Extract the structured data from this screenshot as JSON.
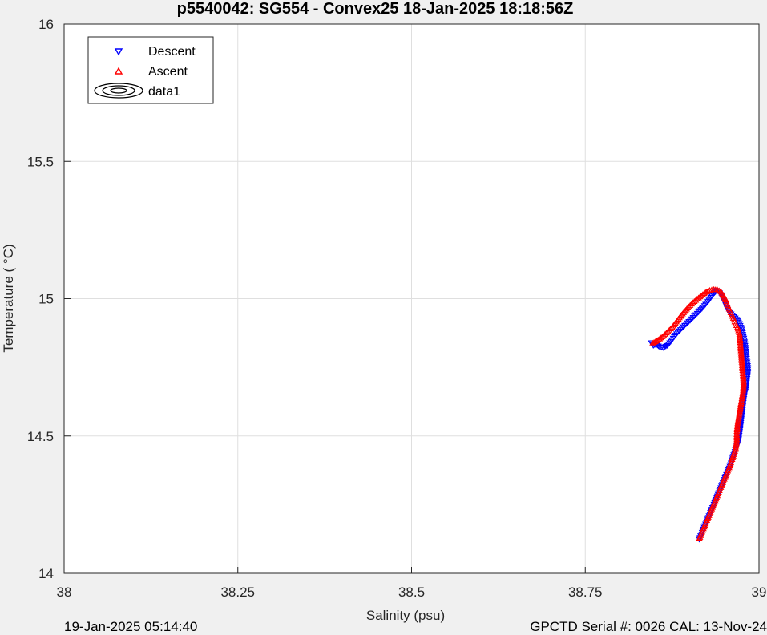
{
  "chart_data": {
    "type": "scatter",
    "title": "p5540042: SG554 - Convex25 18-Jan-2025 18:18:56Z",
    "xlabel": "Salinity (psu)",
    "ylabel": "Temperature (   °C)",
    "xlim": [
      38,
      39
    ],
    "ylim": [
      14,
      16
    ],
    "xticks": [
      38,
      38.25,
      38.5,
      38.75,
      39
    ],
    "xtick_labels": [
      "38",
      "38.25",
      "38.5",
      "38.75",
      "39"
    ],
    "yticks": [
      14,
      14.5,
      15,
      15.5,
      16
    ],
    "ytick_labels": [
      "14",
      "14.5",
      "15",
      "15.5",
      "16"
    ],
    "grid": true,
    "legend_position": "top-left",
    "series": [
      {
        "name": "Descent",
        "marker": "triangle-down",
        "color": "#0000ff",
        "path": [
          [
            38.845,
            14.84
          ],
          [
            38.848,
            14.83
          ],
          [
            38.852,
            14.835
          ],
          [
            38.857,
            14.825
          ],
          [
            38.862,
            14.822
          ],
          [
            38.868,
            14.83
          ],
          [
            38.873,
            14.845
          ],
          [
            38.878,
            14.862
          ],
          [
            38.883,
            14.878
          ],
          [
            38.889,
            14.893
          ],
          [
            38.895,
            14.908
          ],
          [
            38.901,
            14.922
          ],
          [
            38.907,
            14.937
          ],
          [
            38.913,
            14.952
          ],
          [
            38.918,
            14.965
          ],
          [
            38.923,
            14.98
          ],
          [
            38.928,
            14.995
          ],
          [
            38.932,
            15.01
          ],
          [
            38.936,
            15.022
          ],
          [
            38.939,
            15.03
          ],
          [
            38.942,
            15.028
          ],
          [
            38.945,
            15.015
          ],
          [
            38.948,
            15.0
          ],
          [
            38.951,
            14.985
          ],
          [
            38.953,
            14.97
          ],
          [
            38.956,
            14.955
          ],
          [
            38.96,
            14.945
          ],
          [
            38.964,
            14.935
          ],
          [
            38.968,
            14.925
          ],
          [
            38.972,
            14.91
          ],
          [
            38.975,
            14.89
          ],
          [
            38.977,
            14.87
          ],
          [
            38.979,
            14.85
          ],
          [
            38.98,
            14.83
          ],
          [
            38.981,
            14.81
          ],
          [
            38.982,
            14.79
          ],
          [
            38.983,
            14.77
          ],
          [
            38.984,
            14.75
          ],
          [
            38.984,
            14.73
          ],
          [
            38.983,
            14.71
          ],
          [
            38.982,
            14.69
          ],
          [
            38.981,
            14.67
          ],
          [
            38.979,
            14.65
          ],
          [
            38.978,
            14.63
          ],
          [
            38.977,
            14.61
          ],
          [
            38.976,
            14.59
          ],
          [
            38.975,
            14.57
          ],
          [
            38.974,
            14.55
          ],
          [
            38.973,
            14.53
          ],
          [
            38.972,
            14.51
          ],
          [
            38.971,
            14.49
          ],
          [
            38.969,
            14.47
          ],
          [
            38.966,
            14.45
          ],
          [
            38.962,
            14.42
          ],
          [
            38.958,
            14.39
          ],
          [
            38.953,
            14.36
          ],
          [
            38.948,
            14.33
          ],
          [
            38.943,
            14.3
          ],
          [
            38.938,
            14.27
          ],
          [
            38.933,
            14.24
          ],
          [
            38.928,
            14.21
          ],
          [
            38.923,
            14.18
          ],
          [
            38.918,
            14.15
          ],
          [
            38.914,
            14.125
          ]
        ]
      },
      {
        "name": "Ascent",
        "marker": "triangle-up",
        "color": "#ff0000",
        "path": [
          [
            38.914,
            14.125
          ],
          [
            38.918,
            14.15
          ],
          [
            38.923,
            14.18
          ],
          [
            38.928,
            14.21
          ],
          [
            38.933,
            14.24
          ],
          [
            38.938,
            14.27
          ],
          [
            38.943,
            14.3
          ],
          [
            38.948,
            14.33
          ],
          [
            38.953,
            14.36
          ],
          [
            38.958,
            14.39
          ],
          [
            38.962,
            14.42
          ],
          [
            38.966,
            14.45
          ],
          [
            38.968,
            14.48
          ],
          [
            38.968,
            14.51
          ],
          [
            38.969,
            14.54
          ],
          [
            38.971,
            14.57
          ],
          [
            38.973,
            14.6
          ],
          [
            38.975,
            14.63
          ],
          [
            38.977,
            14.66
          ],
          [
            38.978,
            14.69
          ],
          [
            38.977,
            14.72
          ],
          [
            38.976,
            14.75
          ],
          [
            38.975,
            14.78
          ],
          [
            38.974,
            14.81
          ],
          [
            38.973,
            14.84
          ],
          [
            38.972,
            14.87
          ],
          [
            38.969,
            14.895
          ],
          [
            38.965,
            14.915
          ],
          [
            38.962,
            14.935
          ],
          [
            38.958,
            14.955
          ],
          [
            38.955,
            14.975
          ],
          [
            38.952,
            14.995
          ],
          [
            38.949,
            15.01
          ],
          [
            38.945,
            15.025
          ],
          [
            38.94,
            15.032
          ],
          [
            38.935,
            15.033
          ],
          [
            38.929,
            15.03
          ],
          [
            38.923,
            15.022
          ],
          [
            38.917,
            15.01
          ],
          [
            38.911,
            14.998
          ],
          [
            38.905,
            14.985
          ],
          [
            38.899,
            14.97
          ],
          [
            38.893,
            14.953
          ],
          [
            38.887,
            14.935
          ],
          [
            38.881,
            14.915
          ],
          [
            38.875,
            14.895
          ],
          [
            38.869,
            14.88
          ],
          [
            38.863,
            14.865
          ],
          [
            38.857,
            14.853
          ],
          [
            38.851,
            14.843
          ],
          [
            38.847,
            14.838
          ]
        ]
      }
    ],
    "legend": [
      "Descent",
      "Ascent",
      "data1"
    ]
  },
  "footer": {
    "left": "19-Jan-2025 05:14:40",
    "right": "GPCTD Serial #: 0026 CAL: 13-Nov-24"
  }
}
